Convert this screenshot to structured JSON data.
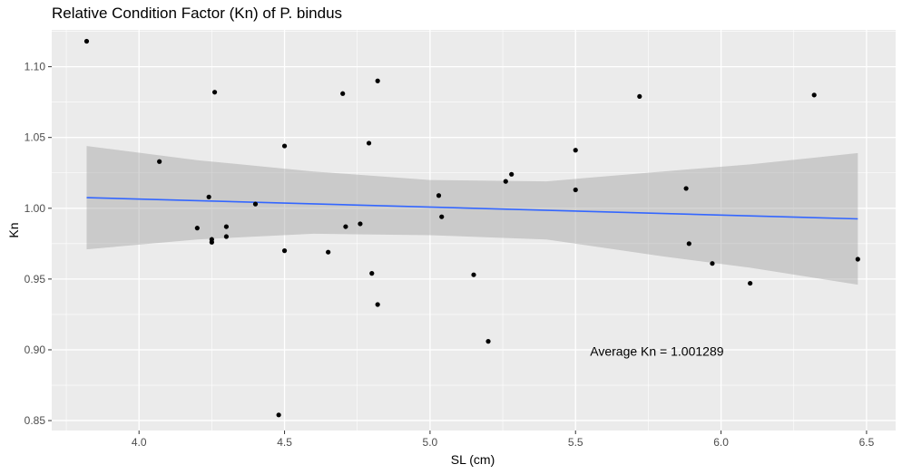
{
  "chart_data": {
    "type": "scatter",
    "title": "Relative Condition Factor (Kn) of P. bindus",
    "xlabel": "SL (cm)",
    "ylabel": "Kn",
    "xlim": [
      3.7,
      6.6
    ],
    "ylim": [
      0.843,
      1.126
    ],
    "x_ticks": [
      4.0,
      4.5,
      5.0,
      5.5,
      6.0,
      6.5
    ],
    "x_tick_labels": [
      "4.0",
      "4.5",
      "5.0",
      "5.5",
      "6.0",
      "6.5"
    ],
    "y_ticks": [
      0.85,
      0.9,
      0.95,
      1.0,
      1.05,
      1.1
    ],
    "y_tick_labels": [
      "0.85",
      "0.90",
      "0.95",
      "1.00",
      "1.05",
      "1.10"
    ],
    "grid": true,
    "points": [
      {
        "x": 3.82,
        "y": 1.118
      },
      {
        "x": 4.07,
        "y": 1.033
      },
      {
        "x": 4.2,
        "y": 0.986
      },
      {
        "x": 4.24,
        "y": 1.008
      },
      {
        "x": 4.25,
        "y": 0.978
      },
      {
        "x": 4.25,
        "y": 0.976
      },
      {
        "x": 4.26,
        "y": 1.082
      },
      {
        "x": 4.3,
        "y": 0.987
      },
      {
        "x": 4.3,
        "y": 0.98
      },
      {
        "x": 4.4,
        "y": 1.003
      },
      {
        "x": 4.48,
        "y": 0.854
      },
      {
        "x": 4.5,
        "y": 1.044
      },
      {
        "x": 4.5,
        "y": 0.97
      },
      {
        "x": 4.65,
        "y": 0.969
      },
      {
        "x": 4.7,
        "y": 1.081
      },
      {
        "x": 4.71,
        "y": 0.987
      },
      {
        "x": 4.76,
        "y": 0.989
      },
      {
        "x": 4.79,
        "y": 1.046
      },
      {
        "x": 4.8,
        "y": 0.954
      },
      {
        "x": 4.82,
        "y": 1.09
      },
      {
        "x": 4.82,
        "y": 0.932
      },
      {
        "x": 5.03,
        "y": 1.009
      },
      {
        "x": 5.04,
        "y": 0.994
      },
      {
        "x": 5.15,
        "y": 0.953
      },
      {
        "x": 5.2,
        "y": 0.906
      },
      {
        "x": 5.26,
        "y": 1.019
      },
      {
        "x": 5.28,
        "y": 1.024
      },
      {
        "x": 5.5,
        "y": 1.041
      },
      {
        "x": 5.5,
        "y": 1.013
      },
      {
        "x": 5.72,
        "y": 1.079
      },
      {
        "x": 5.88,
        "y": 1.014
      },
      {
        "x": 5.89,
        "y": 0.975
      },
      {
        "x": 5.97,
        "y": 0.961
      },
      {
        "x": 6.1,
        "y": 0.947
      },
      {
        "x": 6.32,
        "y": 1.08
      },
      {
        "x": 6.47,
        "y": 0.964
      }
    ],
    "fit_line": {
      "x": [
        3.82,
        6.47
      ],
      "y": [
        1.0075,
        0.9925
      ],
      "color": "#3366ff"
    },
    "confidence_band": {
      "x": [
        3.82,
        4.2,
        4.6,
        5.0,
        5.4,
        5.8,
        6.1,
        6.47
      ],
      "upper": [
        1.044,
        1.034,
        1.026,
        1.02,
        1.019,
        1.026,
        1.031,
        1.039
      ],
      "lower": [
        0.971,
        0.978,
        0.982,
        0.981,
        0.978,
        0.966,
        0.958,
        0.946
      ],
      "color": "#999999"
    },
    "annotation": {
      "text": "Average Kn = 1.001289",
      "x": 5.55,
      "y": 0.899
    },
    "colors": {
      "panel_bg": "#ebebeb",
      "grid_major": "#ffffff",
      "point": "#000000",
      "tick_text": "#4d4d4d"
    }
  }
}
